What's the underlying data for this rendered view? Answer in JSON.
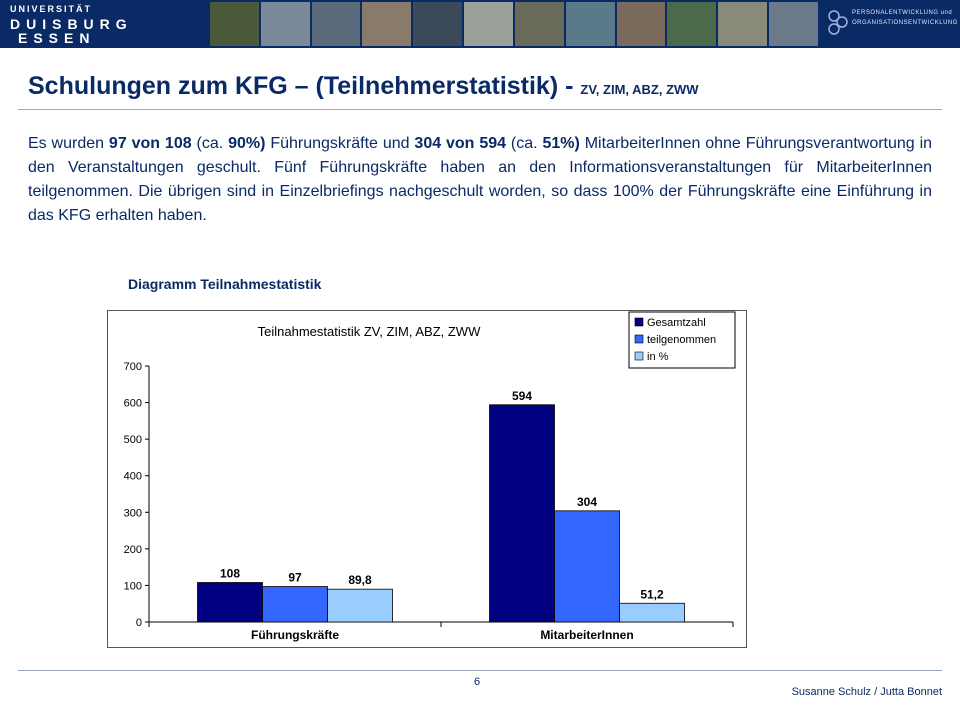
{
  "header": {
    "logo_line1": "UNIVERSITÄT",
    "logo_line2": "DUISBURG",
    "logo_line3": "ESSEN",
    "pe_logo_line1": "PERSONALENTWICKLUNG und",
    "pe_logo_line2": "ORGANISATIONSENTWICKLUNG",
    "photo_colors": [
      "#4a5a3a",
      "#7a8a9a",
      "#5a6a7a",
      "#8a7a6a",
      "#3a4a5a",
      "#9aa09a",
      "#6a6a5a",
      "#5a7a8a",
      "#7a6a5a",
      "#4a6a4a",
      "#8a8a7a",
      "#6a7a8a"
    ]
  },
  "slide": {
    "title_main": "Schulungen zum KFG – (Teilnehmerstatistik) - ",
    "title_sub": "ZV, ZIM, ABZ, ZWW",
    "paragraph": {
      "p1": "Es wurden ",
      "b1": "97 von 108",
      "p2": " (ca. ",
      "b2": "90%)",
      "p3": " Führungskräfte und ",
      "b3": "304 von 594",
      "p4": " (ca. ",
      "b4": "51%)",
      "p5": " MitarbeiterInnen ohne Führungsverantwortung in den Veranstaltungen geschult. Fünf Führungskräfte haben an den Informationsveranstaltungen für MitarbeiterInnen teilgenommen. Die übrigen sind in Einzelbriefings nachgeschult worden, so dass 100% der Führungskräfte eine Einführung in das KFG erhalten haben."
    },
    "chart_caption": "Diagramm Teilnahmestatistik"
  },
  "chart_data": {
    "type": "bar",
    "title": "Teilnahmestatistik ZV, ZIM, ABZ, ZWW",
    "categories": [
      "Führungskräfte",
      "MitarbeiterInnen"
    ],
    "series": [
      {
        "name": "Gesamtzahl",
        "values": [
          108,
          594
        ],
        "labels": [
          "108",
          "594"
        ],
        "color": "#000080"
      },
      {
        "name": "teilgenommen",
        "values": [
          97,
          304
        ],
        "labels": [
          "97",
          "304"
        ],
        "color": "#3366ff"
      },
      {
        "name": "in %",
        "values": [
          89.8,
          51.2
        ],
        "labels": [
          "89,8",
          "51,2"
        ],
        "color": "#99ccff"
      }
    ],
    "yticks": [
      0,
      100,
      200,
      300,
      400,
      500,
      600,
      700
    ],
    "ylim": [
      0,
      700
    ],
    "grid": false,
    "legend": "top-right"
  },
  "footer": {
    "page_number": "6",
    "authors": "Susanne Schulz / Jutta Bonnet"
  }
}
